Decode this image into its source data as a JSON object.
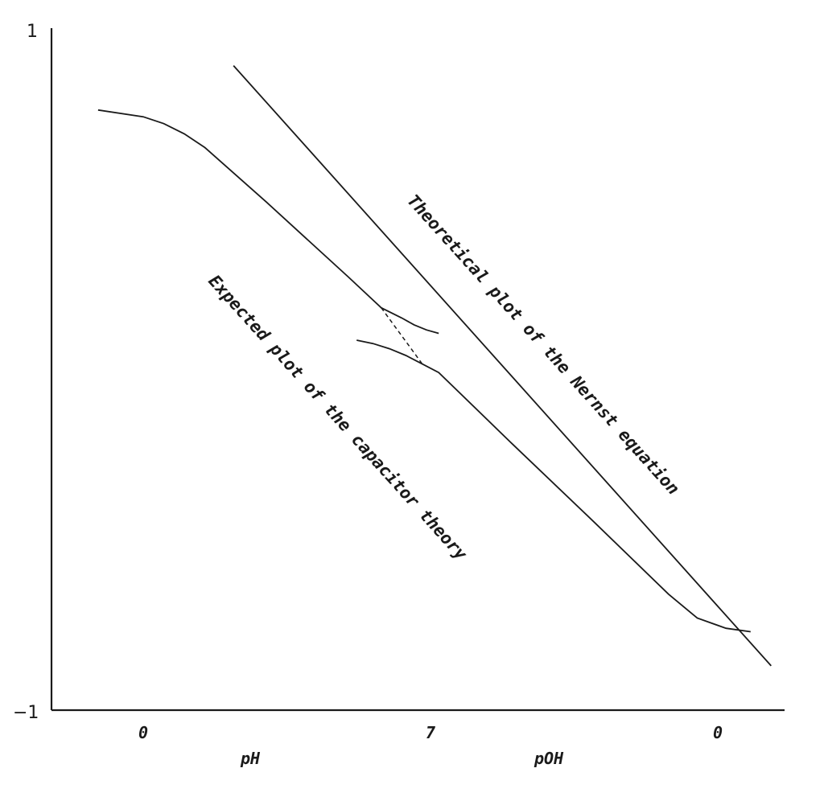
{
  "chart_data": {
    "type": "line",
    "title": "",
    "ylabel": "",
    "ylim": [
      -1,
      1
    ],
    "y_ticks": [
      "1",
      "−1"
    ],
    "x_ticks": [
      "0",
      "7",
      "0"
    ],
    "x_axis_labels": [
      "pH",
      "pOH"
    ],
    "x_ticks_values": [
      0,
      7,
      14
    ],
    "xlim": [
      -1.9,
      15.3
    ],
    "series": [
      {
        "id": "nernst",
        "style": "solid",
        "x": [
          2.2,
          15.3
        ],
        "y": [
          0.89,
          -0.87
        ]
      },
      {
        "id": "capacitor-upper",
        "style": "solid",
        "x": [
          -1.1,
          0.0,
          0.5,
          1.0,
          1.5,
          3.0,
          5.0,
          5.8,
          6.3,
          6.6,
          6.9,
          7.2
        ],
        "y": [
          0.76,
          0.74,
          0.72,
          0.69,
          0.65,
          0.49,
          0.27,
          0.18,
          0.15,
          0.13,
          0.115,
          0.105
        ]
      },
      {
        "id": "capacitor-lower",
        "style": "solid",
        "x": [
          5.2,
          5.6,
          6.0,
          6.4,
          6.8,
          7.2,
          9.0,
          11.0,
          12.8,
          13.5,
          14.2,
          14.8
        ],
        "y": [
          0.085,
          0.075,
          0.06,
          0.04,
          0.015,
          -0.01,
          -0.22,
          -0.45,
          -0.66,
          -0.73,
          -0.76,
          -0.77
        ]
      },
      {
        "id": "transition",
        "style": "dashed",
        "x": [
          5.8,
          6.8
        ],
        "y": [
          0.18,
          0.015
        ]
      }
    ],
    "annotations": [
      {
        "id": "nernst-label",
        "text": "Theoretical plot of the Nernst equation"
      },
      {
        "id": "capacitor-label",
        "text": "Expected plot of the capacitor theory"
      }
    ]
  }
}
